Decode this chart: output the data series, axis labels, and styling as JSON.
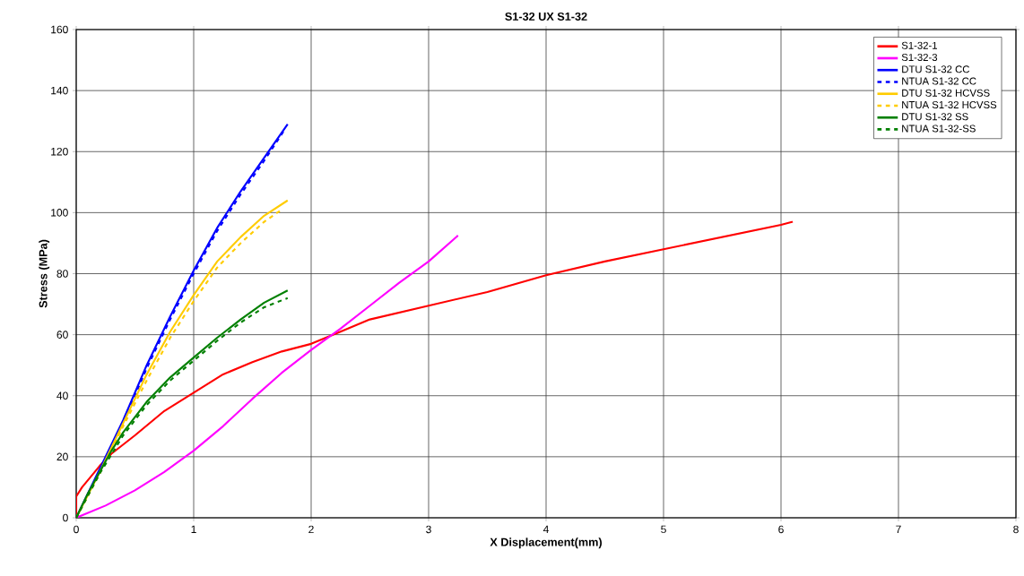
{
  "chart_data": {
    "type": "line",
    "title": "S1-32 UX S1-32",
    "xlabel": "X Displacement(mm)",
    "ylabel": "Stress (MPa)",
    "xlim": [
      0,
      8
    ],
    "ylim": [
      0,
      160
    ],
    "xticks": [
      0,
      1,
      2,
      3,
      4,
      5,
      6,
      7,
      8
    ],
    "yticks": [
      0,
      20,
      40,
      60,
      80,
      100,
      120,
      140,
      160
    ],
    "grid": true,
    "legend": "top right",
    "series": [
      {
        "name": "S1-32-1",
        "color": "#ff0000",
        "line_style": "solid",
        "x": [
          0,
          0,
          0.05,
          0.2,
          0.3,
          0.5,
          0.75,
          1,
          1.25,
          1.5,
          1.75,
          2,
          2.25,
          2.5,
          3,
          3.5,
          4,
          4.5,
          5,
          5.5,
          6,
          6.1
        ],
        "values": [
          0,
          7,
          10,
          17,
          21,
          27,
          35,
          41,
          47,
          51,
          54.5,
          57,
          61,
          65,
          69.5,
          74,
          79.5,
          84,
          88,
          92,
          96,
          97
        ]
      },
      {
        "name": "S1-32-3",
        "color": "#ff00ff",
        "line_style": "solid",
        "x": [
          0,
          0.25,
          0.5,
          0.75,
          1,
          1.25,
          1.5,
          1.75,
          2,
          2.25,
          2.5,
          2.75,
          3,
          3.25
        ],
        "values": [
          0,
          4,
          9,
          15,
          22,
          30,
          39,
          47.5,
          55,
          62,
          69.5,
          77,
          84,
          92.5
        ]
      },
      {
        "name": "DTU S1-32 CC",
        "color": "#0000ff",
        "line_style": "solid",
        "x": [
          0,
          0.2,
          0.4,
          0.6,
          0.8,
          1,
          1.2,
          1.4,
          1.6,
          1.8
        ],
        "values": [
          0,
          16,
          32,
          50,
          66,
          81,
          95,
          107,
          118,
          129
        ]
      },
      {
        "name": "NTUA S1-32 CC",
        "color": "#0000ff",
        "line_style": "dashed",
        "x": [
          0,
          0.2,
          0.4,
          0.6,
          0.8,
          1,
          1.2,
          1.4,
          1.6,
          1.78
        ],
        "values": [
          0,
          15.5,
          31,
          49,
          65,
          80,
          94,
          106,
          117,
          127.5
        ]
      },
      {
        "name": "DTU S1-32 HCVSS",
        "color": "#ffcc00",
        "line_style": "solid",
        "x": [
          0,
          0.2,
          0.4,
          0.6,
          0.8,
          1,
          1.2,
          1.4,
          1.6,
          1.8
        ],
        "values": [
          0,
          15,
          31,
          47,
          61,
          73,
          84,
          92,
          99,
          104
        ]
      },
      {
        "name": "NTUA S1-32 HCVSS",
        "color": "#ffcc00",
        "line_style": "dashed",
        "x": [
          0,
          0.2,
          0.4,
          0.6,
          0.8,
          1,
          1.2,
          1.4,
          1.6,
          1.75
        ],
        "values": [
          0,
          14.5,
          30,
          45,
          59,
          71,
          82,
          90,
          97,
          101
        ]
      },
      {
        "name": "DTU S1-32 SS",
        "color": "#008000",
        "line_style": "solid",
        "x": [
          0,
          0.1,
          0.2,
          0.3,
          0.4,
          0.6,
          0.8,
          1,
          1.2,
          1.4,
          1.6,
          1.8
        ],
        "values": [
          0,
          8,
          15,
          22,
          28,
          38,
          46,
          52.5,
          59,
          65,
          70.5,
          74.5
        ]
      },
      {
        "name": "NTUA S1-32-SS",
        "color": "#008000",
        "line_style": "dashed",
        "x": [
          0,
          0.2,
          0.4,
          0.6,
          0.8,
          1,
          1.2,
          1.4,
          1.6,
          1.8
        ],
        "values": [
          0,
          14.5,
          27,
          37,
          45,
          51.5,
          58,
          64,
          69,
          72
        ]
      }
    ]
  }
}
